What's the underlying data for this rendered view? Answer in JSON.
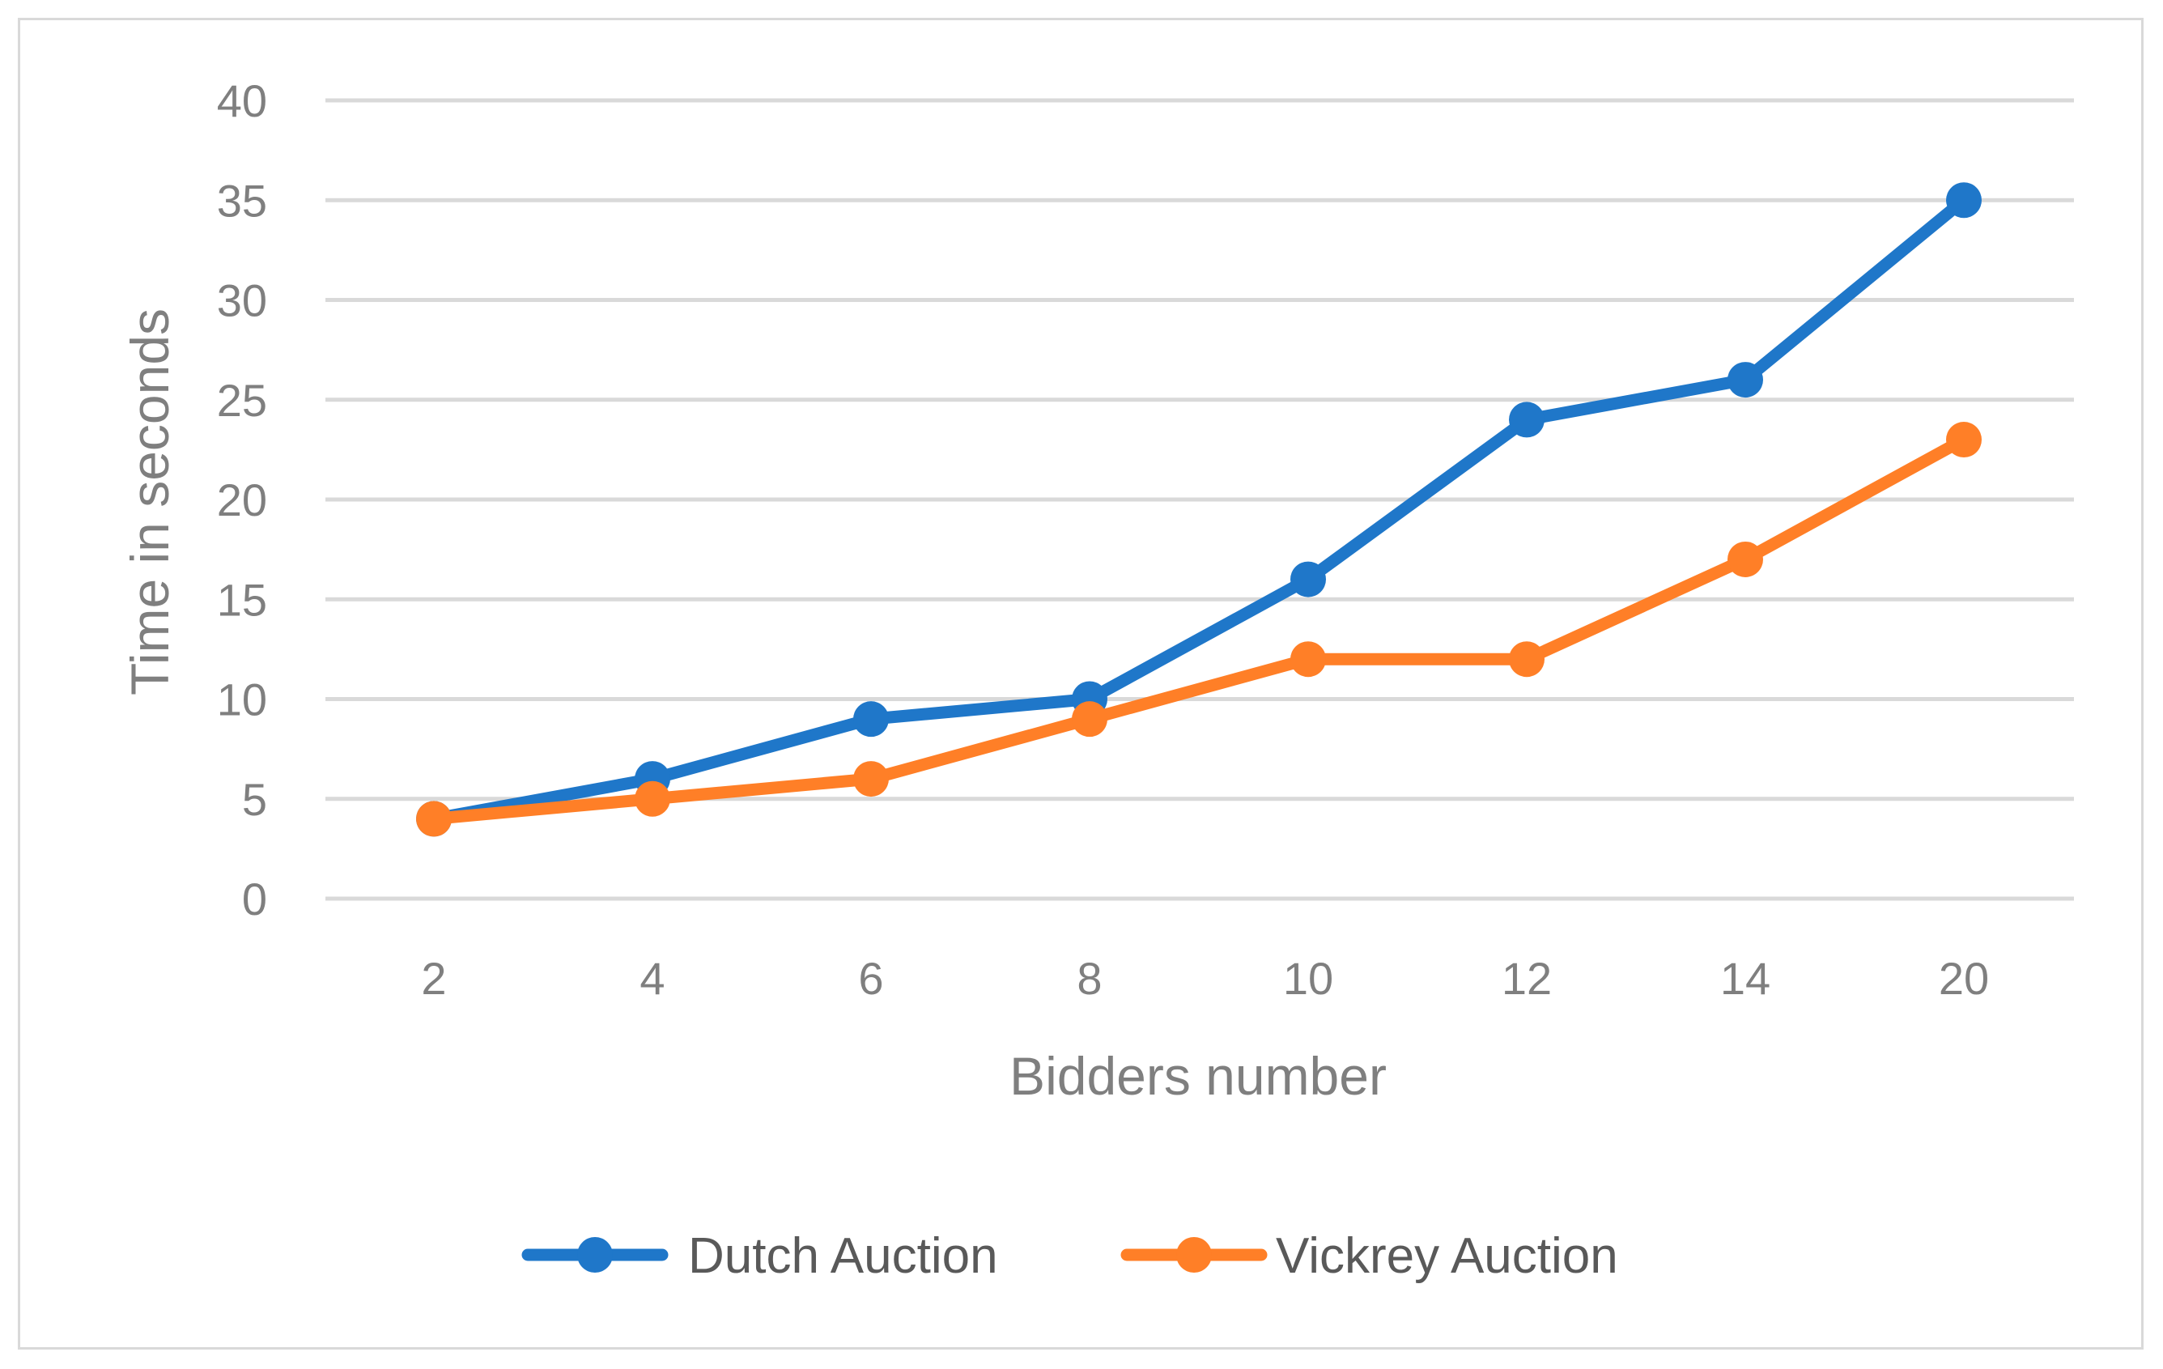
{
  "chart_data": {
    "type": "line",
    "categories": [
      "2",
      "4",
      "6",
      "8",
      "10",
      "12",
      "14",
      "20"
    ],
    "series": [
      {
        "name": "Dutch Auction",
        "color": "#1f77c9",
        "values": [
          4,
          6,
          9,
          10,
          16,
          24,
          26,
          35
        ]
      },
      {
        "name": "Vickrey Auction",
        "color": "#ff7f27",
        "values": [
          4,
          5,
          6,
          9,
          12,
          12,
          17,
          23
        ]
      }
    ],
    "xlabel": "Bidders number",
    "ylabel": "Time in seconds",
    "ylim": [
      0,
      40
    ],
    "yticks": [
      0,
      5,
      10,
      15,
      20,
      25,
      30,
      35,
      40
    ],
    "grid": true,
    "legend_position": "bottom-center",
    "gridline_color": "#d9d9d9"
  }
}
